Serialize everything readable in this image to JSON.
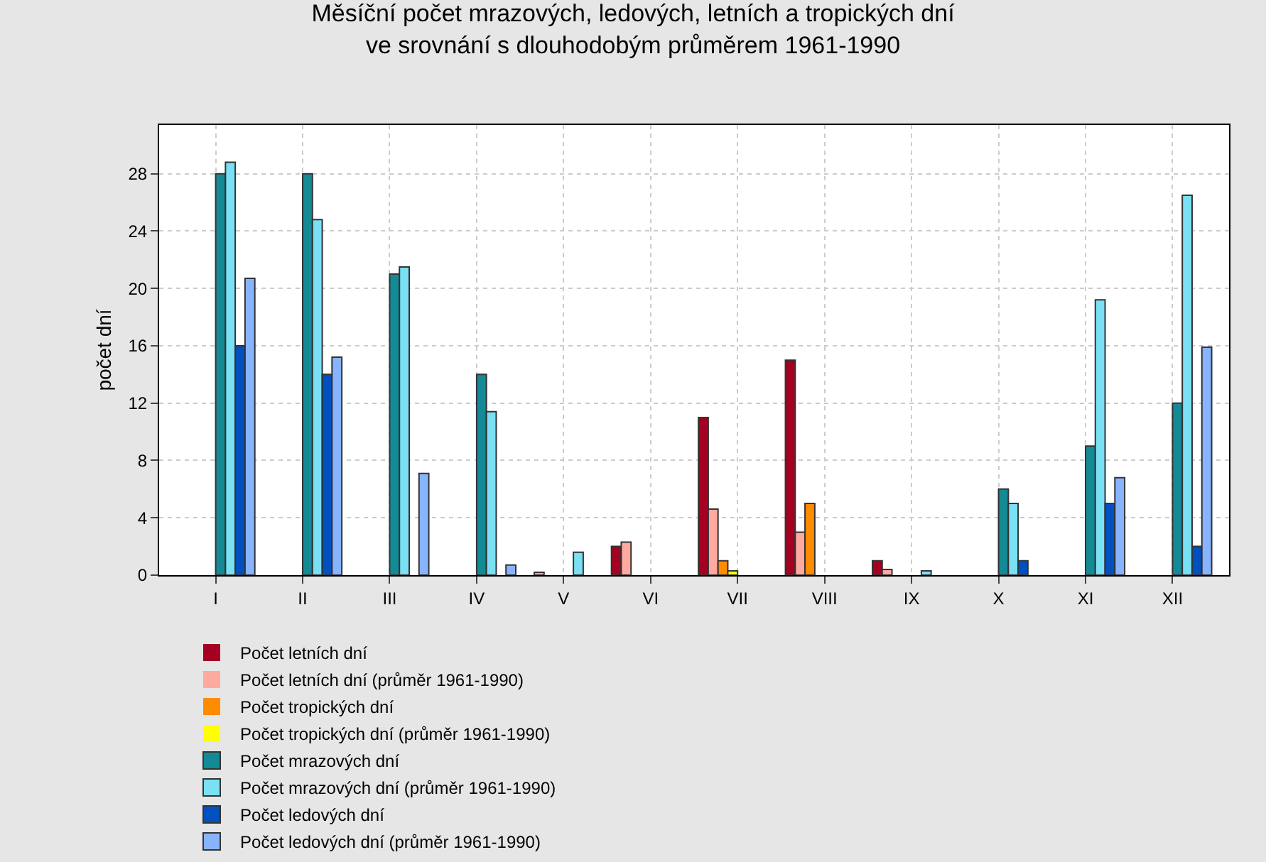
{
  "chart_data": {
    "type": "bar",
    "title": "Měsíční počet mrazových, ledových, letních a tropických dní\nve srovnání s dlouhodobým průměrem 1961-1990",
    "ylabel": "počet dní",
    "categories": [
      "I",
      "II",
      "III",
      "IV",
      "V",
      "VI",
      "VII",
      "VIII",
      "IX",
      "X",
      "XI",
      "XII"
    ],
    "series": [
      {
        "name": "Počet letních dní",
        "color": "#a50021",
        "values": [
          0,
          0,
          0,
          0,
          0,
          2,
          11,
          15,
          1,
          0,
          0,
          0
        ]
      },
      {
        "name": "Počet letních dní (průměr 1961-1990)",
        "color": "#ffaaa0",
        "values": [
          0,
          0,
          0,
          0,
          0.2,
          2.3,
          4.6,
          3.0,
          0.4,
          0,
          0,
          0
        ]
      },
      {
        "name": "Počet tropických dní",
        "color": "#ff8c00",
        "values": [
          0,
          0,
          0,
          0,
          0,
          0,
          1,
          5,
          0,
          0,
          0,
          0
        ]
      },
      {
        "name": "Počet tropických dní (průměr 1961-1990)",
        "color": "#ffff00",
        "values": [
          0,
          0,
          0,
          0,
          0,
          0,
          0.3,
          0,
          0,
          0,
          0,
          0
        ]
      },
      {
        "name": "Počet mrazových dní",
        "color": "#148a96",
        "values": [
          28,
          28,
          21,
          14,
          0,
          0,
          0,
          0,
          0,
          6,
          9,
          12
        ]
      },
      {
        "name": "Počet mrazových dní (průměr 1961-1990)",
        "color": "#7ae1f5",
        "values": [
          28.8,
          24.8,
          21.5,
          11.4,
          1.6,
          0,
          0,
          0,
          0.3,
          5,
          19.2,
          26.5
        ]
      },
      {
        "name": "Počet ledových dní",
        "color": "#0050c0",
        "values": [
          16,
          14,
          0,
          0,
          0,
          0,
          0,
          0,
          0,
          1,
          5,
          2
        ]
      },
      {
        "name": "Počet ledových dní (průměr 1961-1990)",
        "color": "#88b4ff",
        "values": [
          20.7,
          15.2,
          7.1,
          0.7,
          0,
          0,
          0,
          0,
          0,
          0,
          6.8,
          15.9
        ]
      }
    ],
    "ylim": [
      0,
      31.4
    ],
    "yticks": [
      0,
      4,
      8,
      12,
      16,
      20,
      24,
      28
    ],
    "grid": true,
    "legend": "bottom"
  }
}
